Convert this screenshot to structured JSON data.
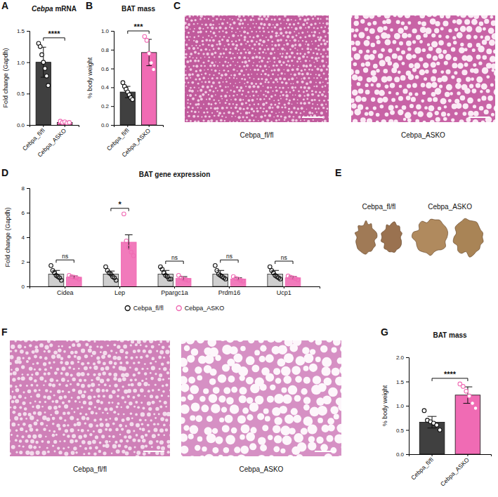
{
  "chart_data": [
    {
      "type": "bar",
      "panel": "A",
      "title": "Cebpa mRNA",
      "y_label": "Fold change (Gapdh)",
      "categories": [
        "Cebpa_fl/fl",
        "Cebpa_ASKO"
      ],
      "values": [
        1.0,
        0.04
      ],
      "errors": [
        0.24,
        0.01
      ],
      "points": [
        [
          1.3,
          1.25,
          1.12,
          1.0,
          0.9,
          0.78,
          0.63
        ],
        [
          0.06,
          0.04,
          0.05,
          0.03,
          0.04
        ]
      ],
      "colors": [
        "#404040",
        "#f06bb4"
      ],
      "ylim": [
        0,
        1.5
      ],
      "yticks": [
        {
          "value": 0,
          "label": "0.0"
        },
        {
          "value": 0.5,
          "label": "0.5"
        },
        {
          "value": 1,
          "label": "1.0"
        },
        {
          "value": 1.5,
          "label": "1.5"
        }
      ],
      "annotations": [
        "****"
      ]
    },
    {
      "type": "bar",
      "panel": "B",
      "title": "BAT mass",
      "y_label": "% body weight",
      "categories": [
        "Cebpa_fl/fl",
        "Cebpa_ASKO"
      ],
      "values": [
        0.35,
        0.77
      ],
      "errors": [
        0.06,
        0.14
      ],
      "points": [
        [
          0.45,
          0.41,
          0.38,
          0.35,
          0.32,
          0.29,
          0.27
        ],
        [
          0.94,
          0.9,
          0.76,
          0.66,
          0.59
        ]
      ],
      "colors": [
        "#404040",
        "#f06bb4"
      ],
      "ylim": [
        0,
        1.0
      ],
      "yticks": [
        {
          "value": 0,
          "label": "0.0"
        },
        {
          "value": 0.2,
          "label": "0.2"
        },
        {
          "value": 0.4,
          "label": "0.4"
        },
        {
          "value": 0.6,
          "label": "0.6"
        },
        {
          "value": 0.8,
          "label": "0.8"
        },
        {
          "value": 1,
          "label": "1.0"
        }
      ],
      "annotations": [
        "***"
      ]
    },
    {
      "type": "bar",
      "panel": "D",
      "title": "BAT gene expression",
      "y_label": "Fold change (Gapdh)",
      "categories": [
        "Cidea",
        "Lep",
        "Ppargc1a",
        "Prdm16",
        "Ucp1"
      ],
      "series": [
        {
          "name": "Cebpa_fl/fl",
          "color": "#404040",
          "values": [
            1.0,
            1.0,
            1.0,
            1.0,
            1.0
          ],
          "errors": [
            0.3,
            0.25,
            0.3,
            0.3,
            0.3
          ],
          "points": [
            [
              1.7,
              1.3,
              1.1,
              0.9,
              0.8,
              0.7,
              0.5
            ],
            [
              1.6,
              1.3,
              1.1,
              1.0,
              0.8,
              0.7,
              0.5
            ],
            [
              1.6,
              1.4,
              1.1,
              0.9,
              0.8,
              0.6,
              0.6
            ],
            [
              1.7,
              1.3,
              1.0,
              0.9,
              0.8,
              0.7,
              0.6
            ],
            [
              1.6,
              1.3,
              1.1,
              0.9,
              0.8,
              0.7,
              0.6
            ]
          ]
        },
        {
          "name": "Cebpa_ASKO",
          "color": "#f06bb4",
          "values": [
            0.75,
            3.6,
            0.65,
            0.6,
            0.7
          ],
          "errors": [
            0.1,
            0.6,
            0.15,
            0.1,
            0.1
          ],
          "points": [
            [
              0.9,
              0.8,
              0.75,
              0.7,
              0.6
            ],
            [
              5.9,
              3.7,
              3.2,
              2.8,
              2.5
            ],
            [
              0.9,
              0.7,
              0.6,
              0.55,
              0.5
            ],
            [
              0.8,
              0.65,
              0.6,
              0.5,
              0.45
            ],
            [
              0.85,
              0.75,
              0.7,
              0.65,
              0.55
            ]
          ]
        }
      ],
      "ylim": [
        0,
        8
      ],
      "yticks": [
        0,
        2,
        4,
        6,
        8
      ],
      "annotations": [
        "ns",
        "*",
        "ns",
        "ns",
        "ns"
      ],
      "legend": "bottom"
    },
    {
      "type": "bar",
      "panel": "G",
      "title": "BAT mass",
      "y_label": "% body weight",
      "categories": [
        "Cebpa_fl/fl",
        "Cebpa_ASKO"
      ],
      "values": [
        0.66,
        1.22
      ],
      "errors": [
        0.12,
        0.17
      ],
      "points": [
        [
          0.9,
          0.7,
          0.67,
          0.64,
          0.6,
          0.5
        ],
        [
          1.45,
          1.4,
          1.3,
          1.2,
          1.05,
          0.95
        ]
      ],
      "colors": [
        "#404040",
        "#f06bb4"
      ],
      "ylim": [
        0,
        2.0
      ],
      "yticks": [
        {
          "value": 0,
          "label": "0.0"
        },
        {
          "value": 0.5,
          "label": "0.5"
        },
        {
          "value": 1,
          "label": "1.0"
        },
        {
          "value": 1.5,
          "label": "1.5"
        },
        {
          "value": 2,
          "label": "2.0"
        }
      ],
      "annotations": [
        "****"
      ]
    }
  ],
  "images": [
    {
      "panel": "C",
      "captions": [
        "Cebpa_fl/fl",
        "Cebpa_ASKO"
      ]
    },
    {
      "panel": "E",
      "captions": [
        "Cebpa_fl/fl",
        "Cebpa_ASKO"
      ]
    },
    {
      "panel": "F",
      "captions": [
        "Cebpa_fl/fl",
        "Cebpa_ASKO"
      ]
    }
  ]
}
